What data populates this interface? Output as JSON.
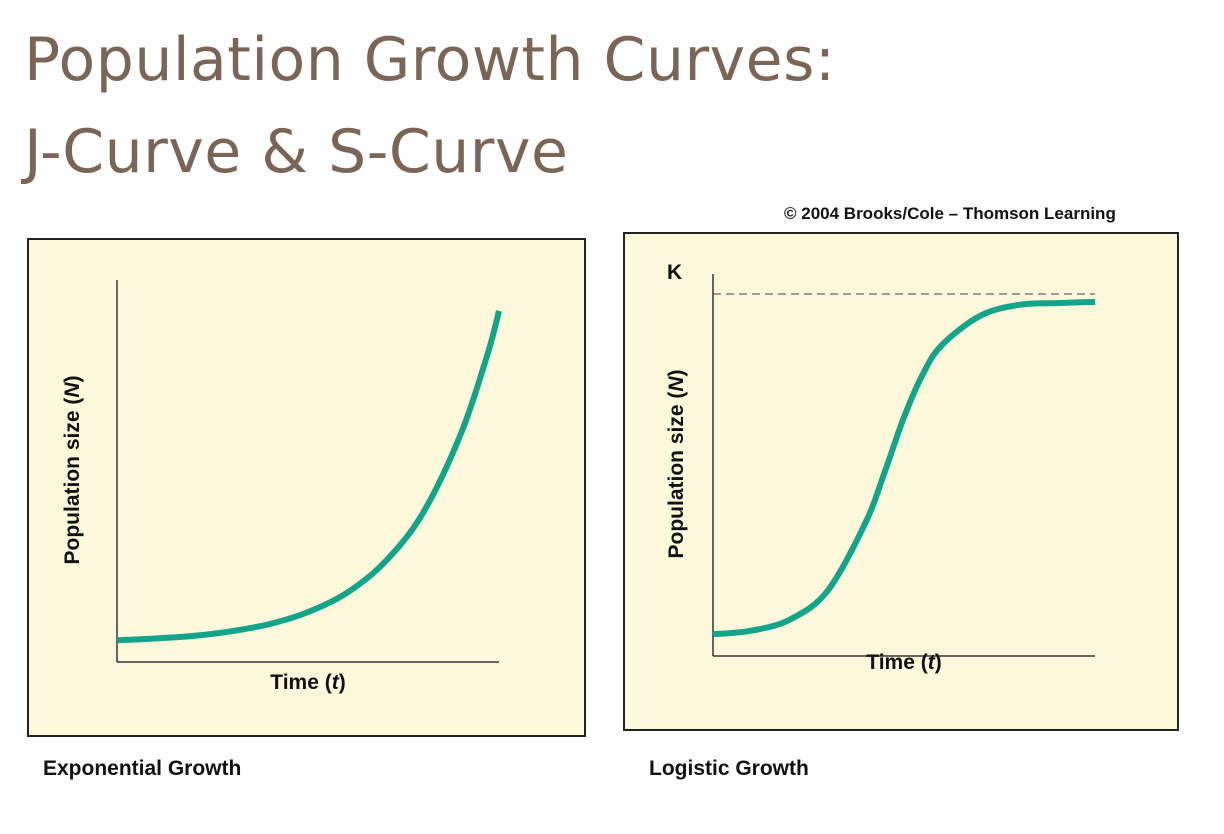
{
  "slide": {
    "title_line1": "Population Growth Curves:",
    "title_line2": "J-Curve & S-Curve",
    "credit": "© 2004 Brooks/Cole – Thomson Learning"
  },
  "colors": {
    "title": "#7a6557",
    "panel_bg": "#fdf8dc",
    "curve": "#13a58a",
    "axis": "#333333"
  },
  "chart_data": [
    {
      "type": "line",
      "caption": "Exponential Growth",
      "xlabel_main": "Time (",
      "xlabel_var": "t",
      "xlabel_end": ")",
      "ylabel_main": "Population size (",
      "ylabel_var": "N",
      "ylabel_end": ")",
      "xlim": [
        0,
        10
      ],
      "ylim": [
        0,
        10
      ],
      "series": [
        {
          "name": "J-curve",
          "x": [
            0,
            1,
            2,
            3,
            4,
            5,
            6,
            7,
            8,
            9,
            9.7,
            10
          ],
          "y": [
            0.6,
            0.65,
            0.72,
            0.85,
            1.05,
            1.38,
            1.9,
            2.75,
            4.1,
            6.3,
            8.5,
            9.7
          ]
        }
      ]
    },
    {
      "type": "line",
      "caption": "Logistic Growth",
      "xlabel_main": "Time (",
      "xlabel_var": "t",
      "xlabel_end": ")",
      "ylabel_main": "Population size (",
      "ylabel_var": "N",
      "ylabel_end": ")",
      "k_label": "K",
      "carrying_capacity": 10,
      "xlim": [
        0,
        10
      ],
      "ylim": [
        0,
        10
      ],
      "series": [
        {
          "name": "S-curve",
          "x": [
            0,
            1,
            2,
            3,
            4,
            4.5,
            5,
            5.5,
            6,
            7,
            8,
            9,
            10
          ],
          "y": [
            0.6,
            0.7,
            1.0,
            1.8,
            3.7,
            5.1,
            6.6,
            7.8,
            8.6,
            9.4,
            9.7,
            9.75,
            9.78
          ]
        }
      ]
    }
  ]
}
